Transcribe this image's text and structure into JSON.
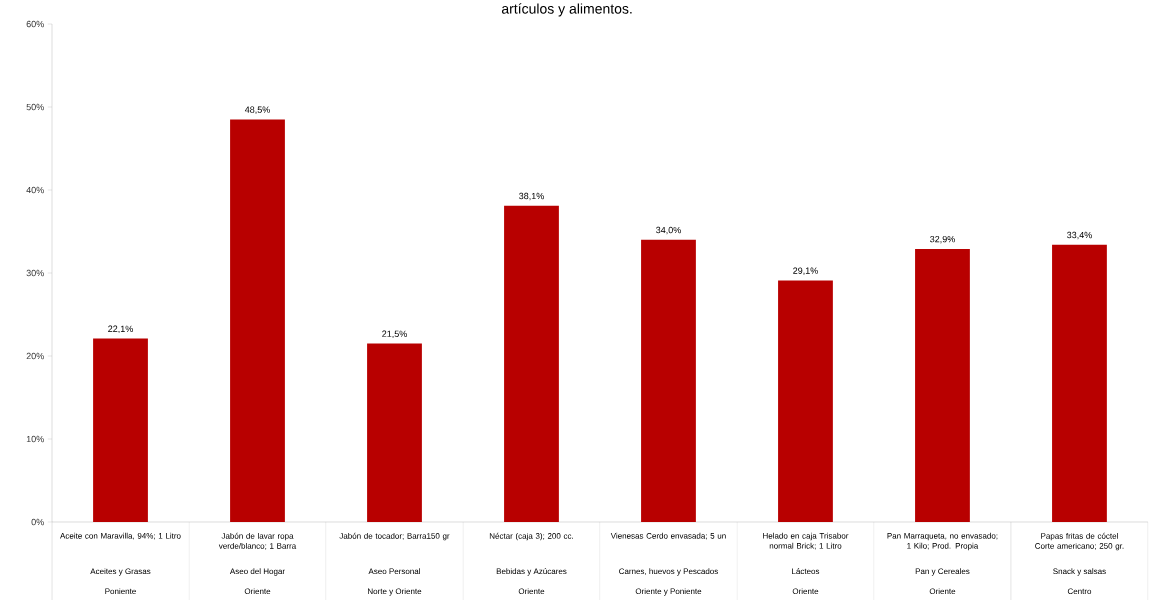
{
  "chart_data": {
    "type": "bar",
    "title": "artículos y alimentos.",
    "categories": [
      "Aceite con Maravilla, 94%; 1 Litro",
      "Jabón de lavar ropa verde/blanco; 1 Barra",
      "Jabón de tocador; Barra150 gr",
      "Néctar (caja 3); 200 cc.",
      "Vienesas Cerdo envasada; 5 un",
      "Helado en caja Trisabor normal Brick; 1 Litro",
      "Pan Marraqueta, no envasado; 1 Kilo; Prod. Propia",
      "Papas fritas de cóctel Corte americano; 250 gr."
    ],
    "values": [
      22.1,
      48.5,
      21.5,
      38.1,
      34.0,
      29.1,
      32.9,
      33.4
    ],
    "value_labels": [
      "22,1%",
      "48,5%",
      "21,5%",
      "38,1%",
      "34,0%",
      "29,1%",
      "32,9%",
      "33,4%"
    ],
    "color": "#b80000",
    "ylim": [
      0,
      60
    ],
    "yticks": [
      {
        "value": 0,
        "label": "0%"
      },
      {
        "value": 10,
        "label": "10%"
      },
      {
        "value": 20,
        "label": "20%"
      },
      {
        "value": 30,
        "label": "30%"
      },
      {
        "value": 40,
        "label": "40%"
      },
      {
        "value": 50,
        "label": "50%"
      },
      {
        "value": 60,
        "label": "60%"
      }
    ],
    "annotations": [
      "Aceites y Grasas",
      "Poniente",
      "Aseo del Hogar",
      "Oriente",
      "Aseo Personal",
      "Norte y Oriente",
      "Bebidas y Azúcares",
      "Oriente",
      "Carnes, huevos y Pescados",
      "Oriente y Poniente",
      "Lácteos",
      "Oriente",
      "Pan y Cereales",
      "Oriente",
      "Snack y salsas",
      "Centro"
    ]
  }
}
